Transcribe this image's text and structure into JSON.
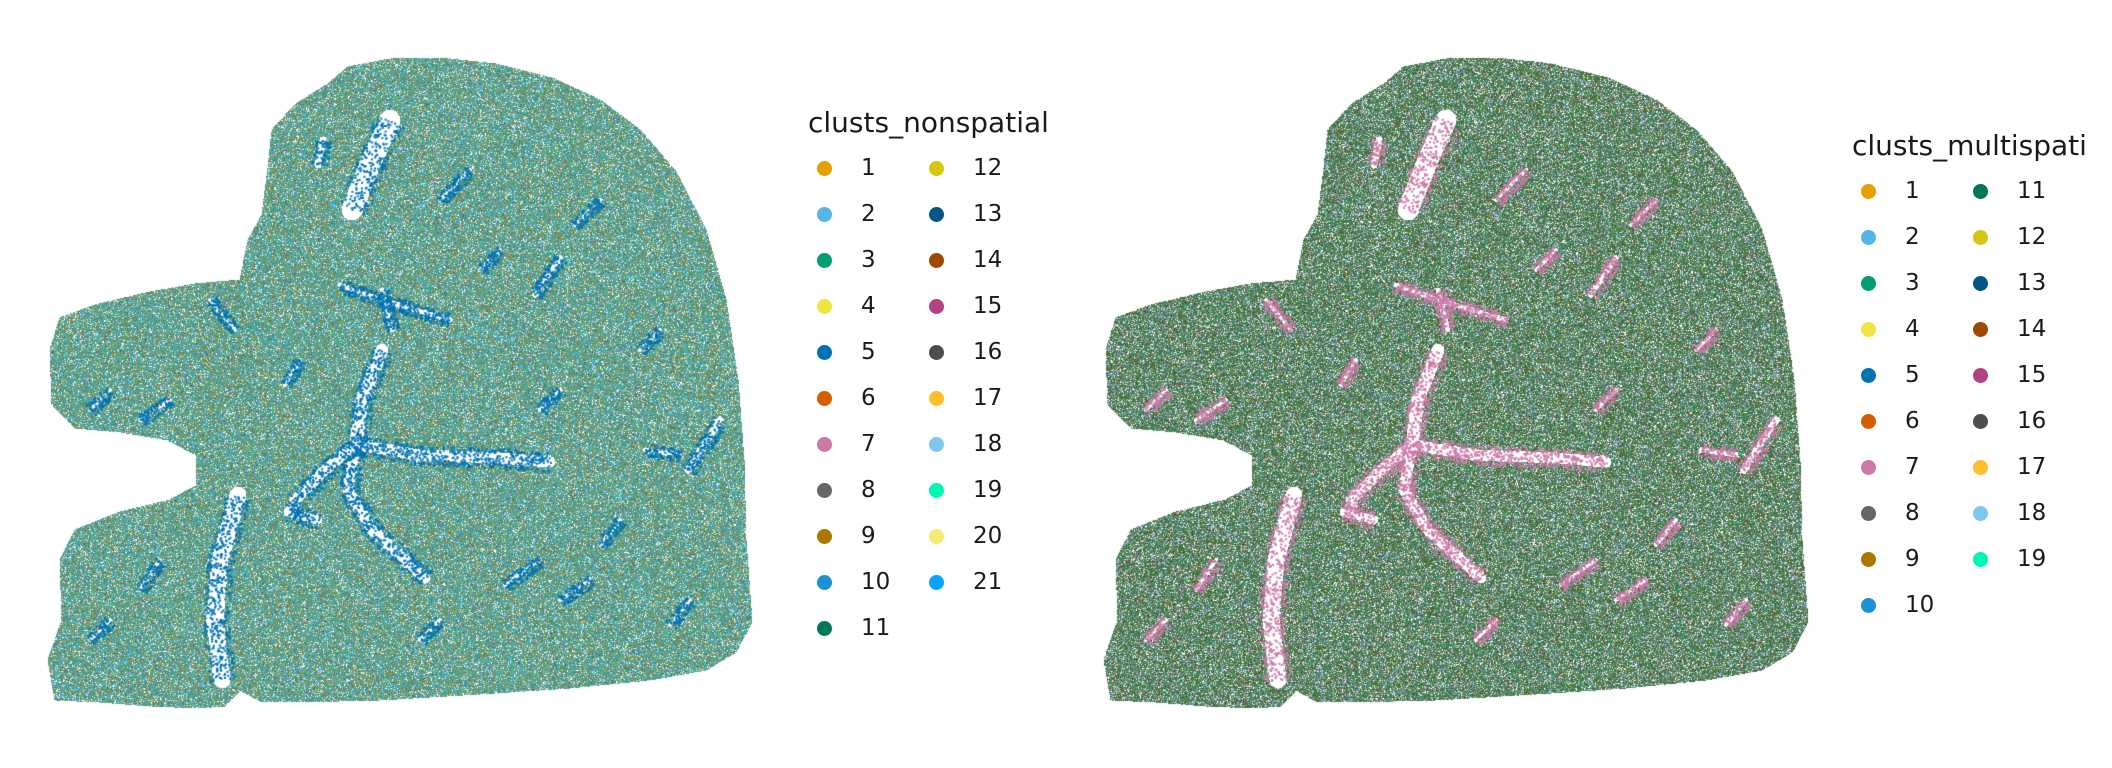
{
  "chart_data": [
    {
      "type": "scatter",
      "title": "",
      "xlabel": "",
      "ylabel": "",
      "grid": false,
      "axes_visible": false,
      "legend_placement": "right",
      "legend": {
        "title": "clusts_nonspatial",
        "columns": 2,
        "entries": [
          {
            "label": "1",
            "color": "#E69F00"
          },
          {
            "label": "2",
            "color": "#56B4E9"
          },
          {
            "label": "3",
            "color": "#009E73"
          },
          {
            "label": "4",
            "color": "#F0E442"
          },
          {
            "label": "5",
            "color": "#0072B2"
          },
          {
            "label": "6",
            "color": "#D55E00"
          },
          {
            "label": "7",
            "color": "#CC79A7"
          },
          {
            "label": "8",
            "color": "#666666"
          },
          {
            "label": "9",
            "color": "#AD7700"
          },
          {
            "label": "10",
            "color": "#1C91D4"
          },
          {
            "label": "11",
            "color": "#007756"
          },
          {
            "label": "12",
            "color": "#D5C711"
          },
          {
            "label": "13",
            "color": "#005685"
          },
          {
            "label": "14",
            "color": "#A04700"
          },
          {
            "label": "15",
            "color": "#B14380"
          },
          {
            "label": "16",
            "color": "#4D4D4D"
          },
          {
            "label": "17",
            "color": "#FFBE2D"
          },
          {
            "label": "18",
            "color": "#80C7EF"
          },
          {
            "label": "19",
            "color": "#00F6B3"
          },
          {
            "label": "20",
            "color": "#F4EB71"
          },
          {
            "label": "21",
            "color": "#06A5FF"
          }
        ]
      }
    },
    {
      "type": "scatter",
      "title": "",
      "xlabel": "",
      "ylabel": "",
      "grid": false,
      "axes_visible": false,
      "legend_placement": "right",
      "legend": {
        "title": "clusts_multispati",
        "columns": 2,
        "entries": [
          {
            "label": "1",
            "color": "#E69F00"
          },
          {
            "label": "2",
            "color": "#56B4E9"
          },
          {
            "label": "3",
            "color": "#009E73"
          },
          {
            "label": "4",
            "color": "#F0E442"
          },
          {
            "label": "5",
            "color": "#0072B2"
          },
          {
            "label": "6",
            "color": "#D55E00"
          },
          {
            "label": "7",
            "color": "#CC79A7"
          },
          {
            "label": "8",
            "color": "#666666"
          },
          {
            "label": "9",
            "color": "#AD7700"
          },
          {
            "label": "10",
            "color": "#1C91D4"
          },
          {
            "label": "11",
            "color": "#007756"
          },
          {
            "label": "12",
            "color": "#D5C711"
          },
          {
            "label": "13",
            "color": "#005685"
          },
          {
            "label": "14",
            "color": "#A04700"
          },
          {
            "label": "15",
            "color": "#B14380"
          },
          {
            "label": "16",
            "color": "#4D4D4D"
          },
          {
            "label": "17",
            "color": "#FFBE2D"
          },
          {
            "label": "18",
            "color": "#80C7EF"
          },
          {
            "label": "19",
            "color": "#00F6B3"
          }
        ]
      }
    }
  ]
}
